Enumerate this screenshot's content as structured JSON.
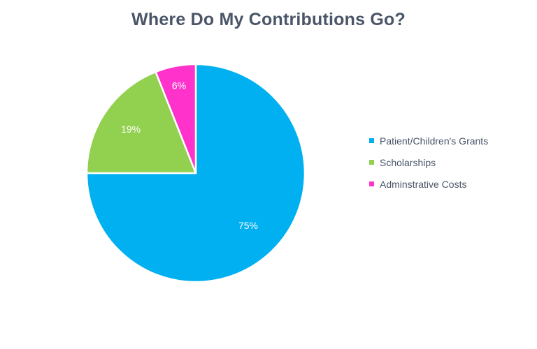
{
  "chart_data": {
    "type": "pie",
    "title": "Where Do My Contributions Go?",
    "categories": [
      "Patient/Children's Grants",
      "Scholarships",
      "Adminstrative Costs"
    ],
    "values": [
      75,
      19,
      6
    ],
    "labels": [
      "75%",
      "19%",
      "6%"
    ],
    "colors": [
      "#00b0f0",
      "#92d050",
      "#ff33cc"
    ],
    "label_color": "#ffffff",
    "legend_position": "right",
    "start_angle": "12 o'clock, clockwise"
  }
}
